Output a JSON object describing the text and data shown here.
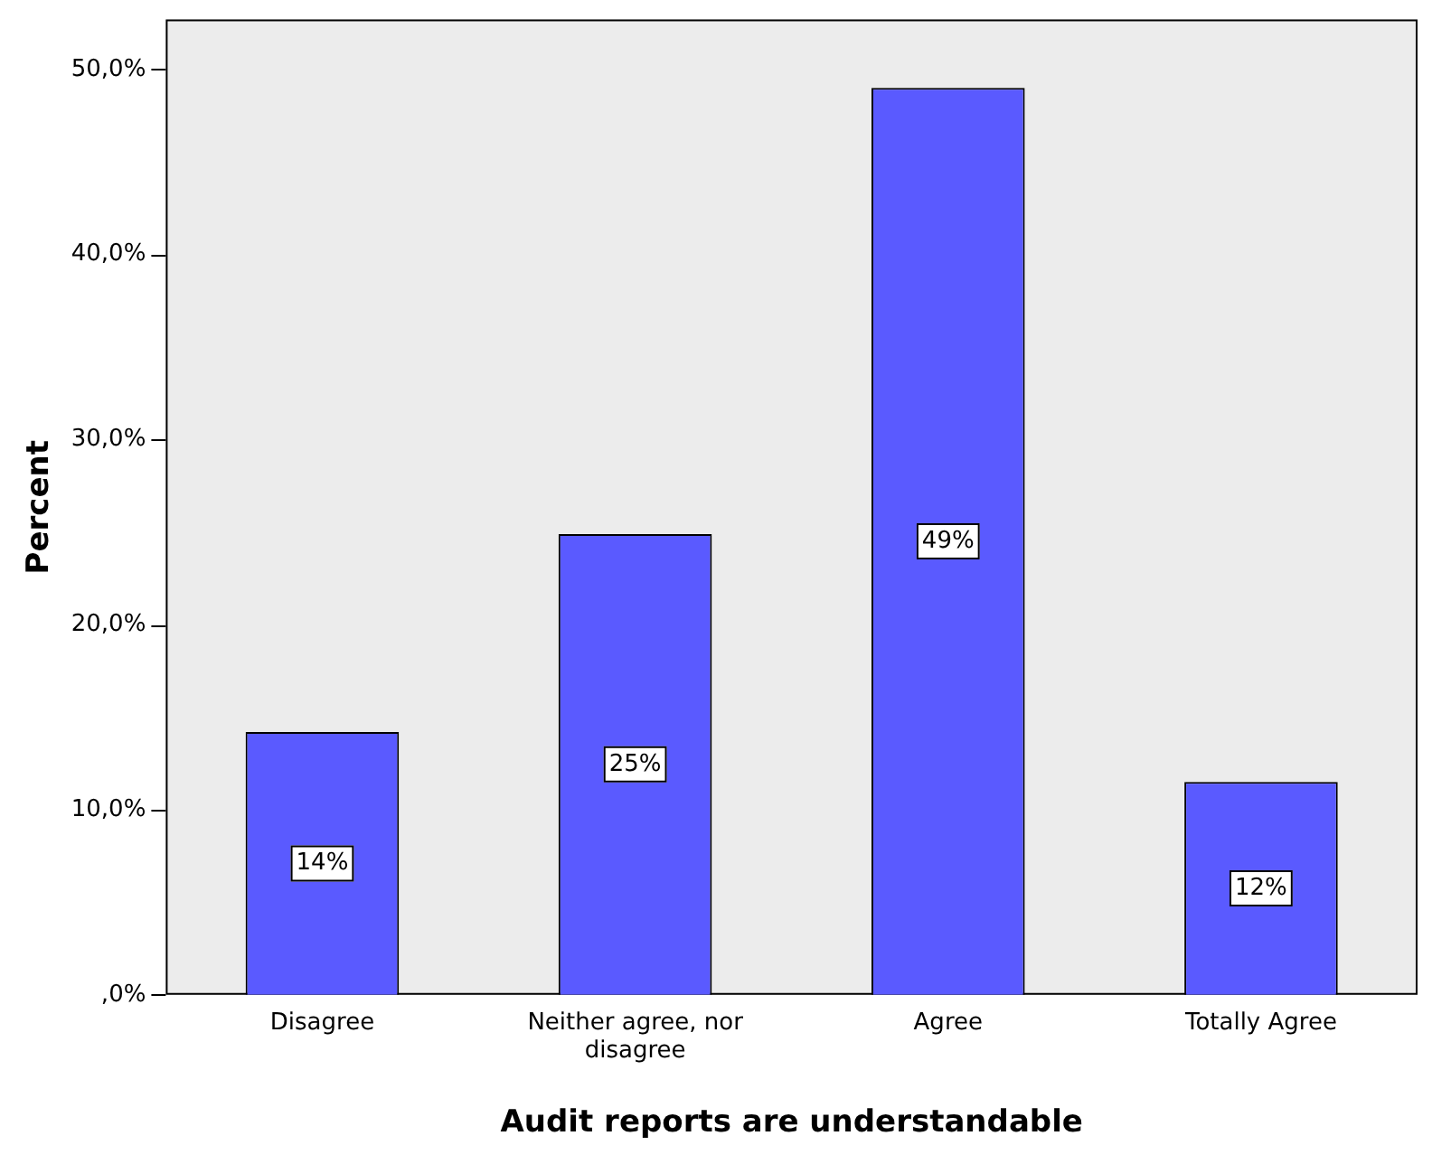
{
  "chart_data": {
    "type": "bar",
    "xlabel": "Audit reports are understandable",
    "ylabel": "Percent",
    "categories": [
      "Disagree",
      "Neither agree, nor disagree",
      "Agree",
      "Totally Agree"
    ],
    "values": [
      14.2,
      24.9,
      49.0,
      11.5
    ],
    "value_labels": [
      "14%",
      "25%",
      "49%",
      "12%"
    ],
    "color": "#5a5aff",
    "ylim": [
      0,
      52.7
    ],
    "yticks": [
      {
        "value": 0,
        "label": ",0%"
      },
      {
        "value": 10,
        "label": "10,0%"
      },
      {
        "value": 20,
        "label": "20,0%"
      },
      {
        "value": 30,
        "label": "30,0%"
      },
      {
        "value": 40,
        "label": "40,0%"
      },
      {
        "value": 50,
        "label": "50,0%"
      }
    ],
    "grid": false,
    "legend": false
  }
}
